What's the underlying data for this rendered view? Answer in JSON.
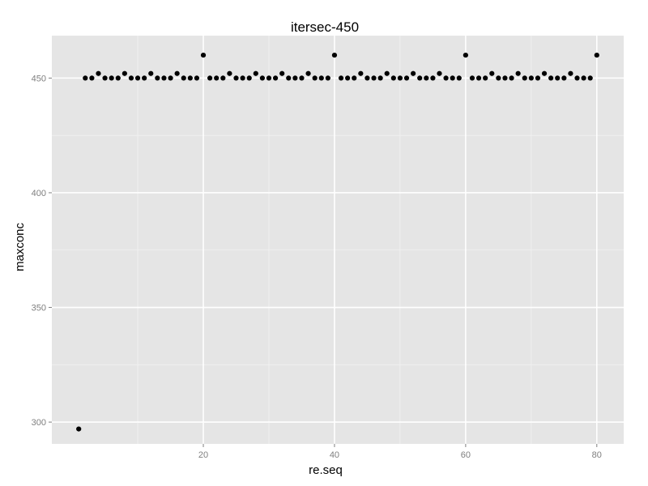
{
  "chart_data": {
    "type": "scatter",
    "title": "itersec-450",
    "xlabel": "re.seq",
    "ylabel": "maxconc",
    "xlim": [
      -3.1,
      84.1
    ],
    "ylim": [
      290.5,
      468.5
    ],
    "xticks": [
      20,
      40,
      60,
      80
    ],
    "xminor": [
      10,
      30,
      50,
      70
    ],
    "yticks": [
      300,
      350,
      400,
      450
    ],
    "yminor": [
      325,
      375,
      425
    ],
    "grid": true,
    "panel_background": "#e5e5e5",
    "grid_color": "#ffffff",
    "point_color": "#000000",
    "x": [
      1,
      2,
      3,
      4,
      5,
      6,
      7,
      8,
      9,
      10,
      11,
      12,
      13,
      14,
      15,
      16,
      17,
      18,
      19,
      20,
      21,
      22,
      23,
      24,
      25,
      26,
      27,
      28,
      29,
      30,
      31,
      32,
      33,
      34,
      35,
      36,
      37,
      38,
      39,
      40,
      41,
      42,
      43,
      44,
      45,
      46,
      47,
      48,
      49,
      50,
      51,
      52,
      53,
      54,
      55,
      56,
      57,
      58,
      59,
      60,
      61,
      62,
      63,
      64,
      65,
      66,
      67,
      68,
      69,
      70,
      71,
      72,
      73,
      74,
      75,
      76,
      77,
      78,
      79,
      80
    ],
    "y": [
      297,
      450,
      450,
      452,
      450,
      450,
      450,
      452,
      450,
      450,
      450,
      452,
      450,
      450,
      450,
      452,
      450,
      450,
      450,
      460,
      450,
      450,
      450,
      452,
      450,
      450,
      450,
      452,
      450,
      450,
      450,
      452,
      450,
      450,
      450,
      452,
      450,
      450,
      450,
      460,
      450,
      450,
      450,
      452,
      450,
      450,
      450,
      452,
      450,
      450,
      450,
      452,
      450,
      450,
      450,
      452,
      450,
      450,
      450,
      460,
      450,
      450,
      450,
      452,
      450,
      450,
      450,
      452,
      450,
      450,
      450,
      452,
      450,
      450,
      450,
      452,
      450,
      450,
      450,
      460
    ]
  }
}
